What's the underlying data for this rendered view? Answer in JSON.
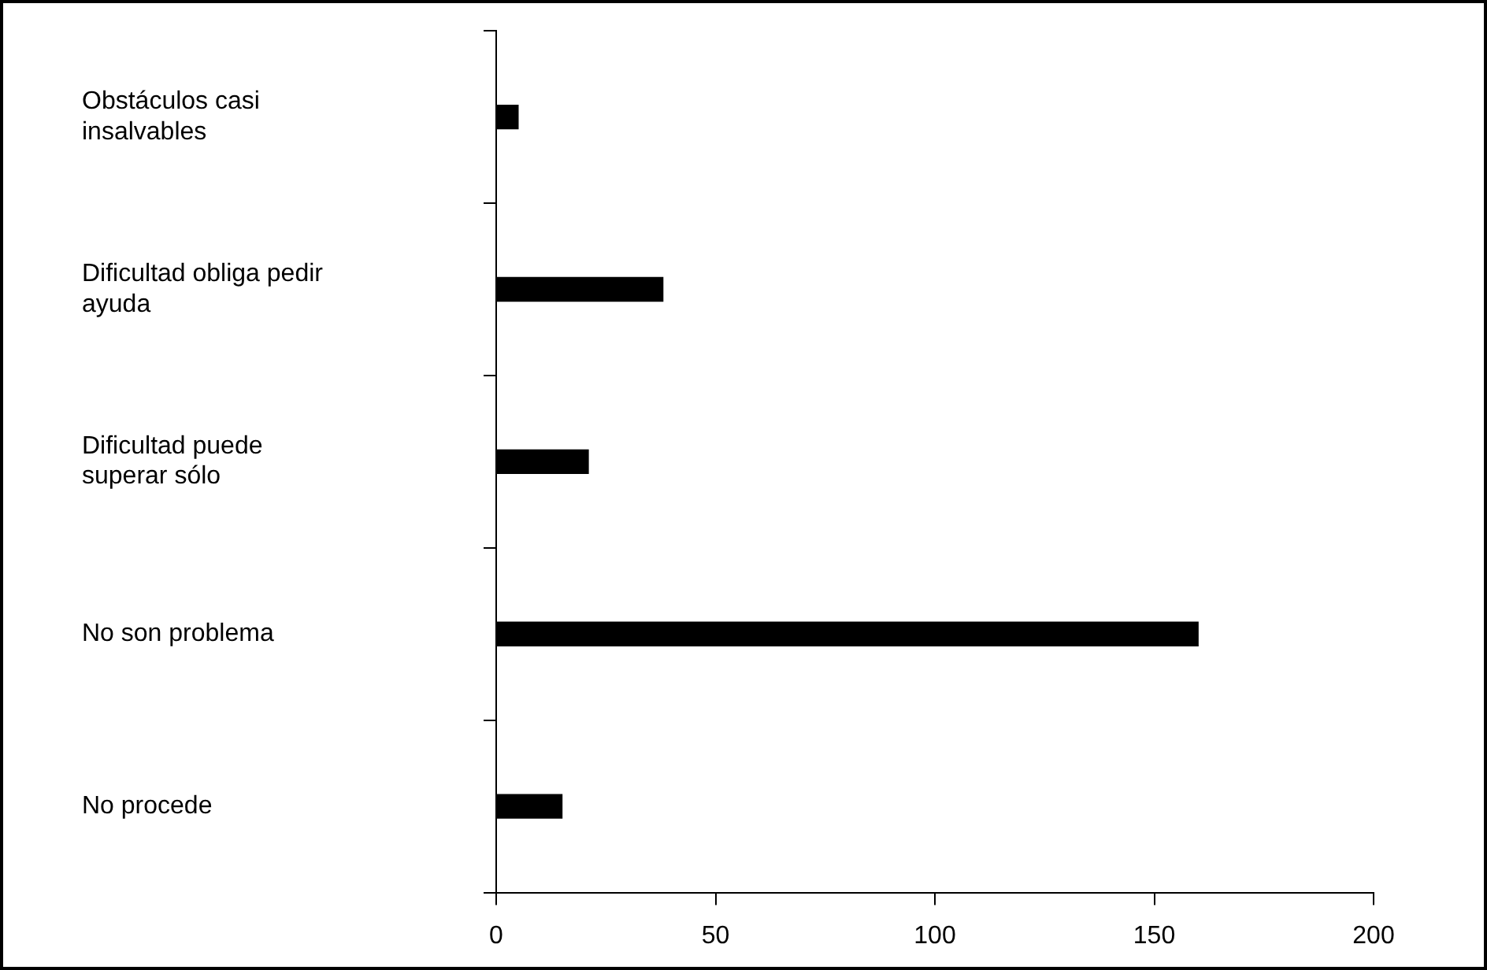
{
  "chart_data": {
    "type": "bar",
    "orientation": "horizontal",
    "categories": [
      "Obstáculos casi insalvables",
      "Dificultad obliga pedir ayuda",
      "Dificultad puede superar sólo",
      "No son problema",
      "No procede"
    ],
    "values": [
      5,
      38,
      21,
      160,
      15
    ],
    "color": "#000000",
    "xlim": [
      0,
      200
    ],
    "xticks": [
      0,
      50,
      100,
      150,
      200
    ],
    "grid": false,
    "legend": false
  }
}
